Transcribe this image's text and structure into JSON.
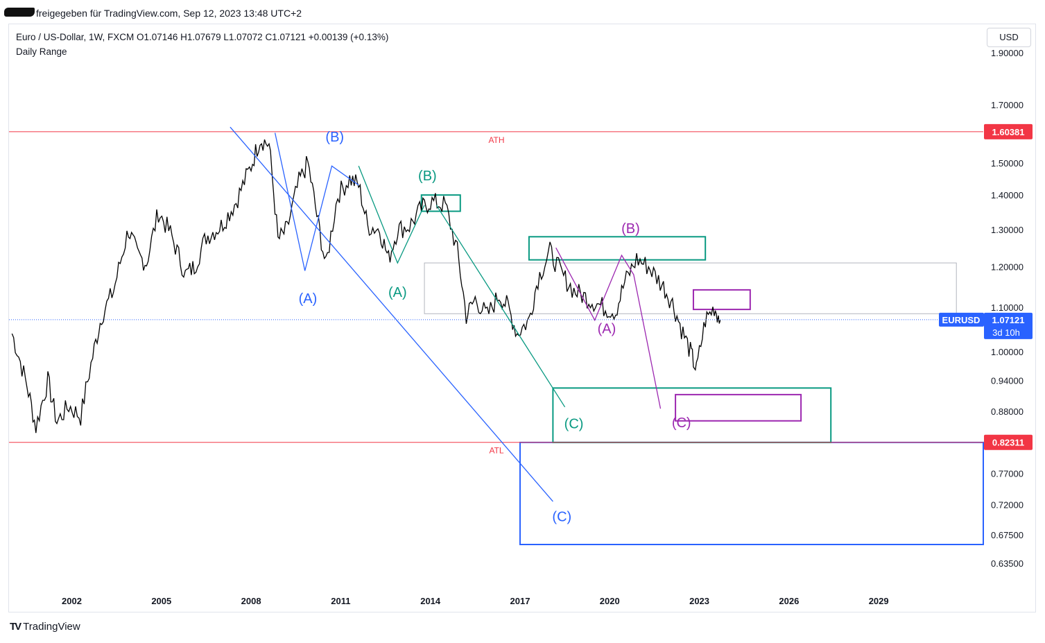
{
  "header": {
    "published": "freigegeben für TradingView.com, Sep 12, 2023 13:48 UTC+2"
  },
  "legend": {
    "line1": "Euro / US-Dollar, 1W, FXCM  O1.07146  H1.07679  L1.07072  C1.07121  +0.00139 (+0.13%)",
    "line2": "Daily Range"
  },
  "currency_button": "USD",
  "footer": {
    "brand": "TradingView"
  },
  "colors": {
    "price": "#000000",
    "blue": "#2962ff",
    "green": "#089981",
    "teal": "#22ab94",
    "purple": "#9c27b0",
    "red": "#f23645",
    "grey_box": "#b2b5be",
    "badge_blue": "#2962ff"
  },
  "chart_data": {
    "type": "line",
    "title": "Euro / US-Dollar, 1W, FXCM",
    "y_scale": "log",
    "ylim": [
      0.6,
      2.02
    ],
    "xlim": [
      1999.9,
      2032.5
    ],
    "y_ticks": [
      "1.90000",
      "1.70000",
      "1.50000",
      "1.40000",
      "1.30000",
      "1.20000",
      "1.10000",
      "1.00000",
      "0.94000",
      "0.88000",
      "0.77000",
      "0.72000",
      "0.67500",
      "0.63500"
    ],
    "x_ticks": [
      "2002",
      "2005",
      "2008",
      "2011",
      "2014",
      "2017",
      "2020",
      "2023",
      "2026",
      "2029"
    ],
    "series": [
      {
        "name": "EURUSD",
        "x": [
          2000.0,
          2000.5,
          2000.8,
          2001.2,
          2001.5,
          2001.9,
          2002.3,
          2002.7,
          2003.0,
          2003.4,
          2003.9,
          2004.2,
          2004.5,
          2004.9,
          2005.3,
          2005.8,
          2006.1,
          2006.5,
          2007.0,
          2007.5,
          2008.0,
          2008.3,
          2008.6,
          2008.9,
          2009.2,
          2009.6,
          2009.9,
          2010.2,
          2010.5,
          2010.9,
          2011.3,
          2011.6,
          2011.9,
          2012.3,
          2012.6,
          2012.9,
          2013.3,
          2013.7,
          2014.0,
          2014.5,
          2014.9,
          2015.2,
          2015.5,
          2015.9,
          2016.3,
          2016.6,
          2016.9,
          2017.3,
          2017.6,
          2018.0,
          2018.4,
          2018.8,
          2019.3,
          2019.8,
          2020.2,
          2020.5,
          2020.9,
          2021.3,
          2021.8,
          2022.1,
          2022.4,
          2022.7,
          2022.9,
          2023.2,
          2023.5,
          2023.7
        ],
        "values": [
          1.04,
          0.93,
          0.85,
          0.94,
          0.86,
          0.89,
          0.87,
          0.99,
          1.08,
          1.14,
          1.3,
          1.23,
          1.21,
          1.35,
          1.29,
          1.18,
          1.2,
          1.28,
          1.31,
          1.38,
          1.49,
          1.58,
          1.56,
          1.27,
          1.3,
          1.44,
          1.5,
          1.34,
          1.2,
          1.4,
          1.45,
          1.43,
          1.31,
          1.3,
          1.22,
          1.3,
          1.31,
          1.36,
          1.38,
          1.37,
          1.24,
          1.08,
          1.12,
          1.08,
          1.13,
          1.1,
          1.04,
          1.07,
          1.17,
          1.24,
          1.18,
          1.14,
          1.12,
          1.1,
          1.09,
          1.16,
          1.22,
          1.2,
          1.15,
          1.11,
          1.05,
          1.0,
          0.96,
          1.07,
          1.1,
          1.07
        ]
      }
    ],
    "price_levels": [
      {
        "label": "ATH",
        "value": 1.60381,
        "badge": "1.60381"
      },
      {
        "label": "ATL",
        "value": 0.82311,
        "badge": "0.82311"
      }
    ],
    "last_price": {
      "symbol": "EURUSD",
      "value": "1.07121",
      "countdown": "3d 10h"
    },
    "wave_labels": [
      {
        "text": "(A)",
        "series": "blue",
        "x": 2009.9,
        "y": 1.11
      },
      {
        "text": "(B)",
        "series": "blue",
        "x": 2010.8,
        "y": 1.57
      },
      {
        "text": "(C)",
        "series": "blue",
        "x": 2018.4,
        "y": 0.695
      },
      {
        "text": "(A)",
        "series": "green",
        "x": 2012.9,
        "y": 1.125
      },
      {
        "text": "(B)",
        "series": "green",
        "x": 2013.9,
        "y": 1.445
      },
      {
        "text": "(C)",
        "series": "green",
        "x": 2018.8,
        "y": 0.848
      },
      {
        "text": "(A)",
        "series": "purple",
        "x": 2019.9,
        "y": 1.04
      },
      {
        "text": "(B)",
        "series": "purple",
        "x": 2020.7,
        "y": 1.29
      },
      {
        "text": "(C)",
        "series": "purple",
        "x": 2022.4,
        "y": 0.85
      }
    ],
    "wave_paths": [
      {
        "series": "blue",
        "points": [
          [
            2008.8,
            1.6
          ],
          [
            2009.8,
            1.19
          ],
          [
            2010.7,
            1.49
          ],
          [
            2011.6,
            1.43
          ]
        ]
      },
      {
        "series": "blue",
        "points": [
          [
            2007.3,
            1.62
          ],
          [
            2018.1,
            0.725
          ]
        ]
      },
      {
        "series": "green",
        "points": [
          [
            2011.6,
            1.49
          ],
          [
            2012.9,
            1.21
          ],
          [
            2013.8,
            1.37
          ]
        ]
      },
      {
        "series": "green",
        "points": [
          [
            2014.2,
            1.37
          ],
          [
            2018.5,
            0.888
          ]
        ]
      },
      {
        "series": "purple",
        "points": [
          [
            2018.2,
            1.25
          ],
          [
            2019.5,
            1.07
          ],
          [
            2020.4,
            1.23
          ],
          [
            2020.8,
            1.18
          ],
          [
            2021.7,
            0.885
          ]
        ]
      }
    ],
    "zones": [
      {
        "series": "blue",
        "x": [
          2017.0,
          2032.5
        ],
        "y": [
          0.661,
          0.823
        ]
      },
      {
        "series": "green",
        "x": [
          2018.1,
          2027.4
        ],
        "y": [
          0.823,
          0.925
        ]
      },
      {
        "series": "green",
        "x": [
          2017.3,
          2023.2
        ],
        "y": [
          1.218,
          1.28
        ]
      },
      {
        "series": "green",
        "x": [
          2013.7,
          2015.0
        ],
        "y": [
          1.352,
          1.4
        ]
      },
      {
        "series": "purple",
        "x": [
          2022.2,
          2026.4
        ],
        "y": [
          0.862,
          0.912
        ]
      },
      {
        "series": "purple",
        "x": [
          2022.8,
          2024.7
        ],
        "y": [
          1.095,
          1.142
        ]
      },
      {
        "series": "grey",
        "x": [
          2013.8,
          2031.6
        ],
        "y": [
          1.085,
          1.21
        ]
      }
    ]
  }
}
